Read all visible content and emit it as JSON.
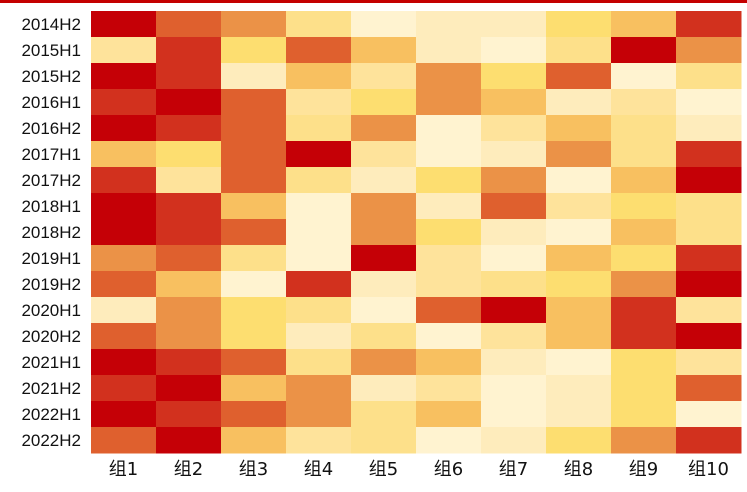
{
  "chart_data": {
    "type": "heatmap",
    "title": "",
    "xlabel": "",
    "ylabel": "",
    "legend": "none",
    "value_range": [
      1,
      10
    ],
    "colormap": [
      "#fff3d0",
      "#feecbc",
      "#fee39b",
      "#fde08a",
      "#fdde70",
      "#f8c060",
      "#eb9247",
      "#df602e",
      "#d2311e",
      "#c50006"
    ],
    "border_color": "#c40000",
    "rows": [
      "2014H2",
      "2015H1",
      "2015H2",
      "2016H1",
      "2016H2",
      "2017H1",
      "2017H2",
      "2018H1",
      "2018H2",
      "2019H1",
      "2019H2",
      "2020H1",
      "2020H2",
      "2021H1",
      "2021H2",
      "2022H1",
      "2022H2"
    ],
    "columns": [
      "组1",
      "组2",
      "组3",
      "组4",
      "组5",
      "组6",
      "组7",
      "组8",
      "组9",
      "组10"
    ],
    "values": [
      [
        10,
        8,
        7,
        4,
        1,
        2,
        2,
        5,
        6,
        9
      ],
      [
        3,
        9,
        5,
        8,
        6,
        2,
        1,
        4,
        10,
        7
      ],
      [
        10,
        9,
        2,
        6,
        3,
        7,
        5,
        8,
        1,
        4
      ],
      [
        9,
        10,
        8,
        3,
        5,
        7,
        6,
        2,
        3,
        1
      ],
      [
        10,
        9,
        8,
        4,
        7,
        1,
        3,
        6,
        4,
        2
      ],
      [
        6,
        5,
        8,
        10,
        3,
        1,
        2,
        7,
        4,
        9
      ],
      [
        9,
        3,
        8,
        4,
        2,
        5,
        7,
        1,
        6,
        10
      ],
      [
        10,
        9,
        6,
        1,
        7,
        2,
        8,
        3,
        5,
        4
      ],
      [
        10,
        9,
        8,
        1,
        7,
        5,
        2,
        1,
        6,
        4
      ],
      [
        7,
        8,
        4,
        1,
        10,
        3,
        1,
        6,
        5,
        9
      ],
      [
        8,
        6,
        1,
        9,
        2,
        3,
        4,
        5,
        7,
        10
      ],
      [
        2,
        7,
        5,
        4,
        1,
        8,
        10,
        6,
        9,
        3
      ],
      [
        8,
        7,
        5,
        2,
        4,
        1,
        3,
        6,
        9,
        10
      ],
      [
        10,
        9,
        8,
        4,
        7,
        6,
        2,
        1,
        5,
        3
      ],
      [
        9,
        10,
        6,
        7,
        2,
        3,
        1,
        2,
        5,
        8
      ],
      [
        10,
        9,
        8,
        7,
        4,
        6,
        1,
        2,
        5,
        1
      ],
      [
        8,
        10,
        6,
        3,
        4,
        1,
        2,
        5,
        7,
        9
      ]
    ]
  }
}
